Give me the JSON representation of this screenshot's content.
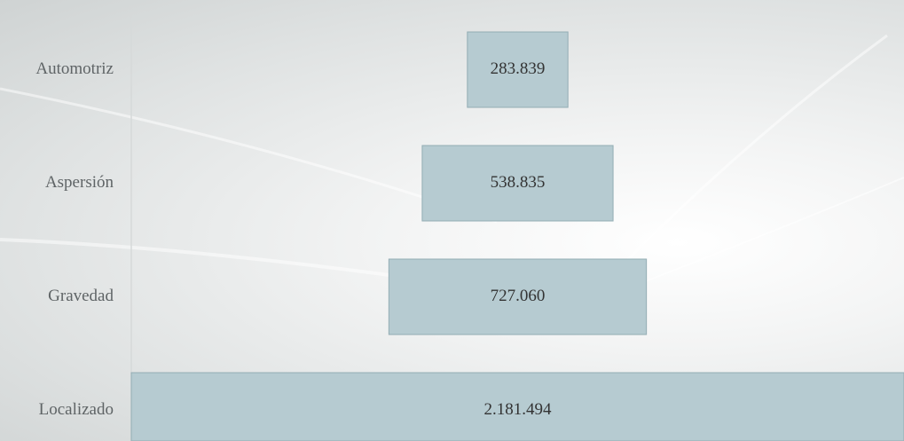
{
  "chart_data": {
    "type": "funnel",
    "categories": [
      "Automotriz",
      "Aspersión",
      "Gravedad",
      "Localizado"
    ],
    "values": [
      283839,
      538835,
      727060,
      2181494
    ],
    "value_labels": [
      "283.839",
      "538.835",
      "727.060",
      "2.181.494"
    ],
    "color": "#b6cbd1"
  }
}
